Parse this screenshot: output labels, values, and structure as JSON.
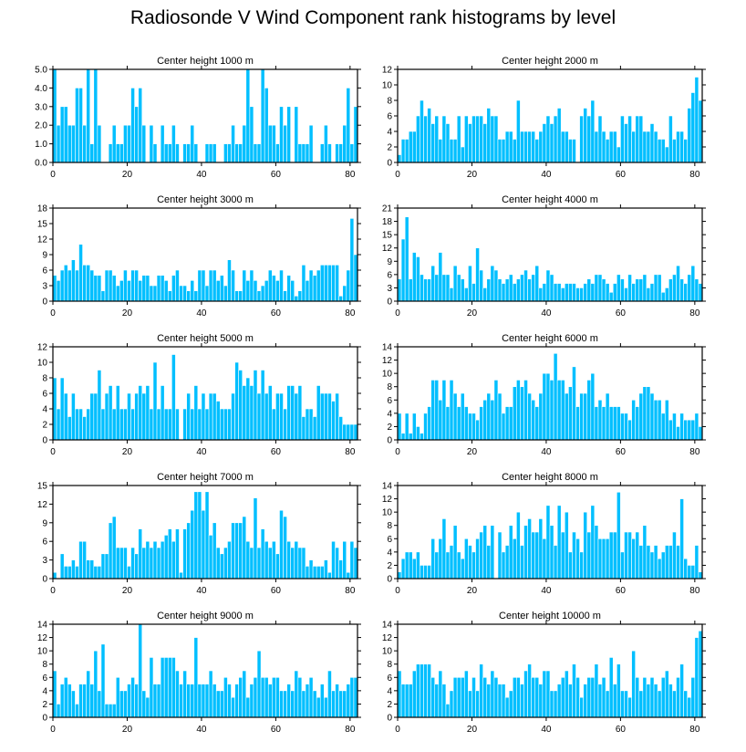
{
  "figure": {
    "title": "Radiosonde V Wind Component rank histograms by level",
    "bar_color": "#00bfff"
  },
  "chart_data": [
    {
      "type": "bar",
      "title": "Center height 1000 m",
      "xlim": [
        0,
        82
      ],
      "xticks": [
        0,
        20,
        40,
        60,
        80
      ],
      "ylim": [
        0,
        5
      ],
      "yticks": [
        0,
        1,
        2,
        3,
        4,
        5
      ],
      "ytick_labels": [
        "0.0",
        "1.0",
        "2.0",
        "3.0",
        "4.0",
        "5.0"
      ],
      "values": [
        5,
        2,
        3,
        3,
        2,
        2,
        4,
        4,
        2,
        5,
        1,
        5,
        2,
        0,
        0,
        1,
        2,
        1,
        1,
        2,
        2,
        4,
        3,
        4,
        2,
        0,
        2,
        1,
        0,
        2,
        1,
        1,
        2,
        1,
        0,
        1,
        1,
        2,
        1,
        0,
        0,
        1,
        1,
        1,
        0,
        0,
        1,
        1,
        2,
        1,
        1,
        2,
        5,
        3,
        1,
        1,
        5,
        4,
        2,
        2,
        1,
        3,
        2,
        3,
        0,
        3,
        1,
        1,
        1,
        2,
        0,
        0,
        1,
        2,
        1,
        0,
        1,
        1,
        2,
        4,
        1,
        3
      ]
    },
    {
      "type": "bar",
      "title": "Center height 2000 m",
      "xlim": [
        0,
        82
      ],
      "xticks": [
        0,
        20,
        40,
        60,
        80
      ],
      "ylim": [
        0,
        12
      ],
      "yticks": [
        0,
        2,
        4,
        6,
        8,
        10,
        12
      ],
      "ytick_labels": [
        "0",
        "2",
        "4",
        "6",
        "8",
        "10",
        "12"
      ],
      "values": [
        1,
        3,
        3,
        4,
        4,
        6,
        8,
        6,
        7,
        5,
        6,
        3,
        6,
        5,
        3,
        3,
        6,
        2,
        6,
        5,
        6,
        6,
        6,
        5,
        7,
        6,
        6,
        3,
        3,
        4,
        4,
        3,
        8,
        4,
        4,
        4,
        4,
        3,
        4,
        5,
        6,
        5,
        6,
        7,
        4,
        4,
        3,
        3,
        0,
        6,
        7,
        6,
        8,
        4,
        6,
        4,
        3,
        4,
        4,
        2,
        6,
        5,
        6,
        4,
        6,
        6,
        4,
        4,
        5,
        4,
        3,
        3,
        2,
        6,
        3,
        4,
        4,
        3,
        7,
        9,
        11,
        8
      ]
    },
    {
      "type": "bar",
      "title": "Center height 3000 m",
      "xlim": [
        0,
        82
      ],
      "xticks": [
        0,
        20,
        40,
        60,
        80
      ],
      "ylim": [
        0,
        18
      ],
      "yticks": [
        0,
        3,
        6,
        9,
        12,
        15,
        18
      ],
      "ytick_labels": [
        "0",
        "3",
        "6",
        "9",
        "12",
        "15",
        "18"
      ],
      "values": [
        5,
        4,
        6,
        7,
        6,
        8,
        6,
        11,
        7,
        7,
        6,
        5,
        5,
        2,
        6,
        6,
        5,
        3,
        4,
        6,
        4,
        6,
        6,
        4,
        5,
        5,
        3,
        3,
        5,
        5,
        4,
        2,
        5,
        6,
        3,
        3,
        2,
        4,
        2,
        6,
        6,
        3,
        6,
        6,
        4,
        5,
        3,
        8,
        6,
        2,
        2,
        6,
        4,
        6,
        4,
        2,
        3,
        4,
        6,
        5,
        4,
        6,
        2,
        5,
        4,
        1,
        2,
        7,
        4,
        6,
        5,
        6,
        7,
        7,
        7,
        7,
        7,
        1,
        3,
        6,
        16,
        9
      ]
    },
    {
      "type": "bar",
      "title": "Center height 4000 m",
      "xlim": [
        0,
        82
      ],
      "xticks": [
        0,
        20,
        40,
        60,
        80
      ],
      "ylim": [
        0,
        21
      ],
      "yticks": [
        0,
        3,
        6,
        9,
        12,
        15,
        18,
        21
      ],
      "ytick_labels": [
        "0",
        "3",
        "6",
        "9",
        "12",
        "15",
        "18",
        "21"
      ],
      "values": [
        5,
        14,
        19,
        5,
        11,
        10,
        6,
        5,
        5,
        8,
        6,
        11,
        6,
        6,
        3,
        8,
        6,
        5,
        3,
        8,
        4,
        12,
        7,
        3,
        5,
        8,
        7,
        5,
        4,
        5,
        6,
        4,
        5,
        6,
        7,
        5,
        6,
        8,
        3,
        4,
        7,
        6,
        4,
        4,
        3,
        4,
        4,
        4,
        3,
        3,
        4,
        5,
        4,
        6,
        6,
        5,
        4,
        2,
        4,
        6,
        5,
        3,
        6,
        4,
        5,
        5,
        6,
        3,
        4,
        6,
        6,
        2,
        3,
        5,
        6,
        8,
        5,
        4,
        6,
        8,
        5,
        4
      ]
    },
    {
      "type": "bar",
      "title": "Center height 5000 m",
      "xlim": [
        0,
        82
      ],
      "xticks": [
        0,
        20,
        40,
        60,
        80
      ],
      "ylim": [
        0,
        12
      ],
      "yticks": [
        0,
        2,
        4,
        6,
        8,
        10,
        12
      ],
      "ytick_labels": [
        "0",
        "2",
        "4",
        "6",
        "8",
        "10",
        "12"
      ],
      "values": [
        8,
        4,
        8,
        6,
        3,
        6,
        4,
        4,
        3,
        4,
        6,
        6,
        9,
        4,
        6,
        7,
        4,
        7,
        4,
        4,
        6,
        4,
        6,
        7,
        6,
        7,
        4,
        10,
        4,
        7,
        4,
        4,
        11,
        4,
        0,
        4,
        6,
        4,
        7,
        4,
        6,
        4,
        6,
        6,
        5,
        4,
        4,
        4,
        6,
        10,
        9,
        7,
        8,
        7,
        9,
        6,
        9,
        6,
        7,
        4,
        6,
        6,
        4,
        7,
        7,
        6,
        7,
        3,
        4,
        4,
        3,
        7,
        6,
        6,
        6,
        5,
        6,
        3,
        2,
        2,
        2,
        2
      ]
    },
    {
      "type": "bar",
      "title": "Center height 6000 m",
      "xlim": [
        0,
        82
      ],
      "xticks": [
        0,
        20,
        40,
        60,
        80
      ],
      "ylim": [
        0,
        14
      ],
      "yticks": [
        0,
        2,
        4,
        6,
        8,
        10,
        12,
        14
      ],
      "ytick_labels": [
        "0",
        "2",
        "4",
        "6",
        "8",
        "10",
        "12",
        "14"
      ],
      "values": [
        4,
        1,
        4,
        1,
        4,
        2,
        1,
        4,
        5,
        9,
        9,
        6,
        9,
        5,
        9,
        7,
        5,
        7,
        5,
        4,
        4,
        3,
        5,
        6,
        7,
        6,
        9,
        7,
        4,
        5,
        5,
        8,
        9,
        8,
        9,
        7,
        6,
        5,
        7,
        10,
        10,
        9,
        13,
        9,
        9,
        7,
        8,
        11,
        5,
        7,
        7,
        9,
        10,
        5,
        6,
        5,
        7,
        5,
        5,
        5,
        4,
        4,
        3,
        6,
        5,
        7,
        8,
        8,
        7,
        6,
        6,
        4,
        6,
        3,
        4,
        2,
        4,
        3,
        3,
        3,
        4,
        2
      ]
    },
    {
      "type": "bar",
      "title": "Center height 7000 m",
      "xlim": [
        0,
        82
      ],
      "xticks": [
        0,
        20,
        40,
        60,
        80
      ],
      "ylim": [
        0,
        15
      ],
      "yticks": [
        0,
        3,
        6,
        9,
        12,
        15
      ],
      "ytick_labels": [
        "0",
        "3",
        "6",
        "9",
        "12",
        "15"
      ],
      "values": [
        1,
        0,
        4,
        2,
        2,
        3,
        2,
        6,
        6,
        3,
        3,
        2,
        2,
        4,
        4,
        9,
        10,
        5,
        5,
        5,
        2,
        5,
        4,
        8,
        5,
        6,
        5,
        6,
        5,
        6,
        7,
        8,
        6,
        8,
        1,
        8,
        9,
        11,
        14,
        14,
        11,
        14,
        7,
        9,
        5,
        4,
        5,
        6,
        9,
        9,
        9,
        10,
        6,
        5,
        13,
        5,
        8,
        6,
        5,
        6,
        4,
        11,
        10,
        6,
        5,
        6,
        5,
        5,
        2,
        3,
        2,
        2,
        2,
        3,
        1,
        6,
        5,
        3,
        6,
        1,
        6,
        5
      ]
    },
    {
      "type": "bar",
      "title": "Center height 8000 m",
      "xlim": [
        0,
        82
      ],
      "xticks": [
        0,
        20,
        40,
        60,
        80
      ],
      "ylim": [
        0,
        14
      ],
      "yticks": [
        0,
        2,
        4,
        6,
        8,
        10,
        12,
        14
      ],
      "ytick_labels": [
        "0",
        "2",
        "4",
        "6",
        "8",
        "10",
        "12",
        "14"
      ],
      "values": [
        1,
        3,
        4,
        4,
        3,
        4,
        2,
        2,
        2,
        6,
        4,
        6,
        9,
        4,
        5,
        8,
        4,
        3,
        6,
        5,
        4,
        6,
        7,
        8,
        5,
        8,
        0,
        7,
        4,
        5,
        8,
        6,
        10,
        5,
        8,
        9,
        7,
        7,
        9,
        6,
        11,
        8,
        5,
        11,
        7,
        10,
        4,
        7,
        6,
        4,
        10,
        7,
        11,
        8,
        6,
        6,
        6,
        7,
        7,
        13,
        4,
        7,
        7,
        6,
        7,
        5,
        8,
        5,
        4,
        5,
        3,
        4,
        5,
        5,
        7,
        5,
        12,
        3,
        2,
        2,
        5,
        1
      ]
    },
    {
      "type": "bar",
      "title": "Center height 9000 m",
      "xlim": [
        0,
        82
      ],
      "xticks": [
        0,
        20,
        40,
        60,
        80
      ],
      "ylim": [
        0,
        14
      ],
      "yticks": [
        0,
        2,
        4,
        6,
        8,
        10,
        12,
        14
      ],
      "ytick_labels": [
        "0",
        "2",
        "4",
        "6",
        "8",
        "10",
        "12",
        "14"
      ],
      "values": [
        7,
        2,
        5,
        6,
        5,
        4,
        2,
        5,
        5,
        7,
        5,
        10,
        4,
        11,
        2,
        2,
        2,
        6,
        4,
        4,
        5,
        6,
        5,
        14,
        4,
        3,
        9,
        5,
        5,
        9,
        9,
        9,
        9,
        7,
        5,
        7,
        5,
        5,
        12,
        5,
        5,
        5,
        7,
        5,
        4,
        4,
        6,
        5,
        3,
        5,
        6,
        7,
        3,
        5,
        6,
        10,
        6,
        6,
        5,
        6,
        6,
        4,
        4,
        5,
        4,
        7,
        6,
        4,
        5,
        6,
        4,
        3,
        5,
        3,
        7,
        4,
        5,
        4,
        4,
        5,
        6,
        6
      ]
    },
    {
      "type": "bar",
      "title": "Center height 10000 m",
      "xlim": [
        0,
        82
      ],
      "xticks": [
        0,
        20,
        40,
        60,
        80
      ],
      "ylim": [
        0,
        14
      ],
      "yticks": [
        0,
        2,
        4,
        6,
        8,
        10,
        12,
        14
      ],
      "ytick_labels": [
        "0",
        "2",
        "4",
        "6",
        "8",
        "10",
        "12",
        "14"
      ],
      "values": [
        7,
        5,
        5,
        5,
        7,
        8,
        8,
        8,
        8,
        6,
        5,
        7,
        5,
        2,
        4,
        6,
        6,
        6,
        7,
        4,
        6,
        4,
        8,
        6,
        5,
        7,
        6,
        5,
        5,
        3,
        4,
        6,
        6,
        5,
        7,
        8,
        6,
        6,
        5,
        7,
        7,
        4,
        4,
        5,
        6,
        7,
        5,
        8,
        6,
        3,
        5,
        6,
        6,
        8,
        5,
        6,
        4,
        9,
        5,
        8,
        4,
        4,
        3,
        10,
        6,
        4,
        6,
        5,
        6,
        5,
        4,
        6,
        7,
        5,
        4,
        6,
        8,
        4,
        3,
        6,
        12,
        13
      ]
    }
  ]
}
